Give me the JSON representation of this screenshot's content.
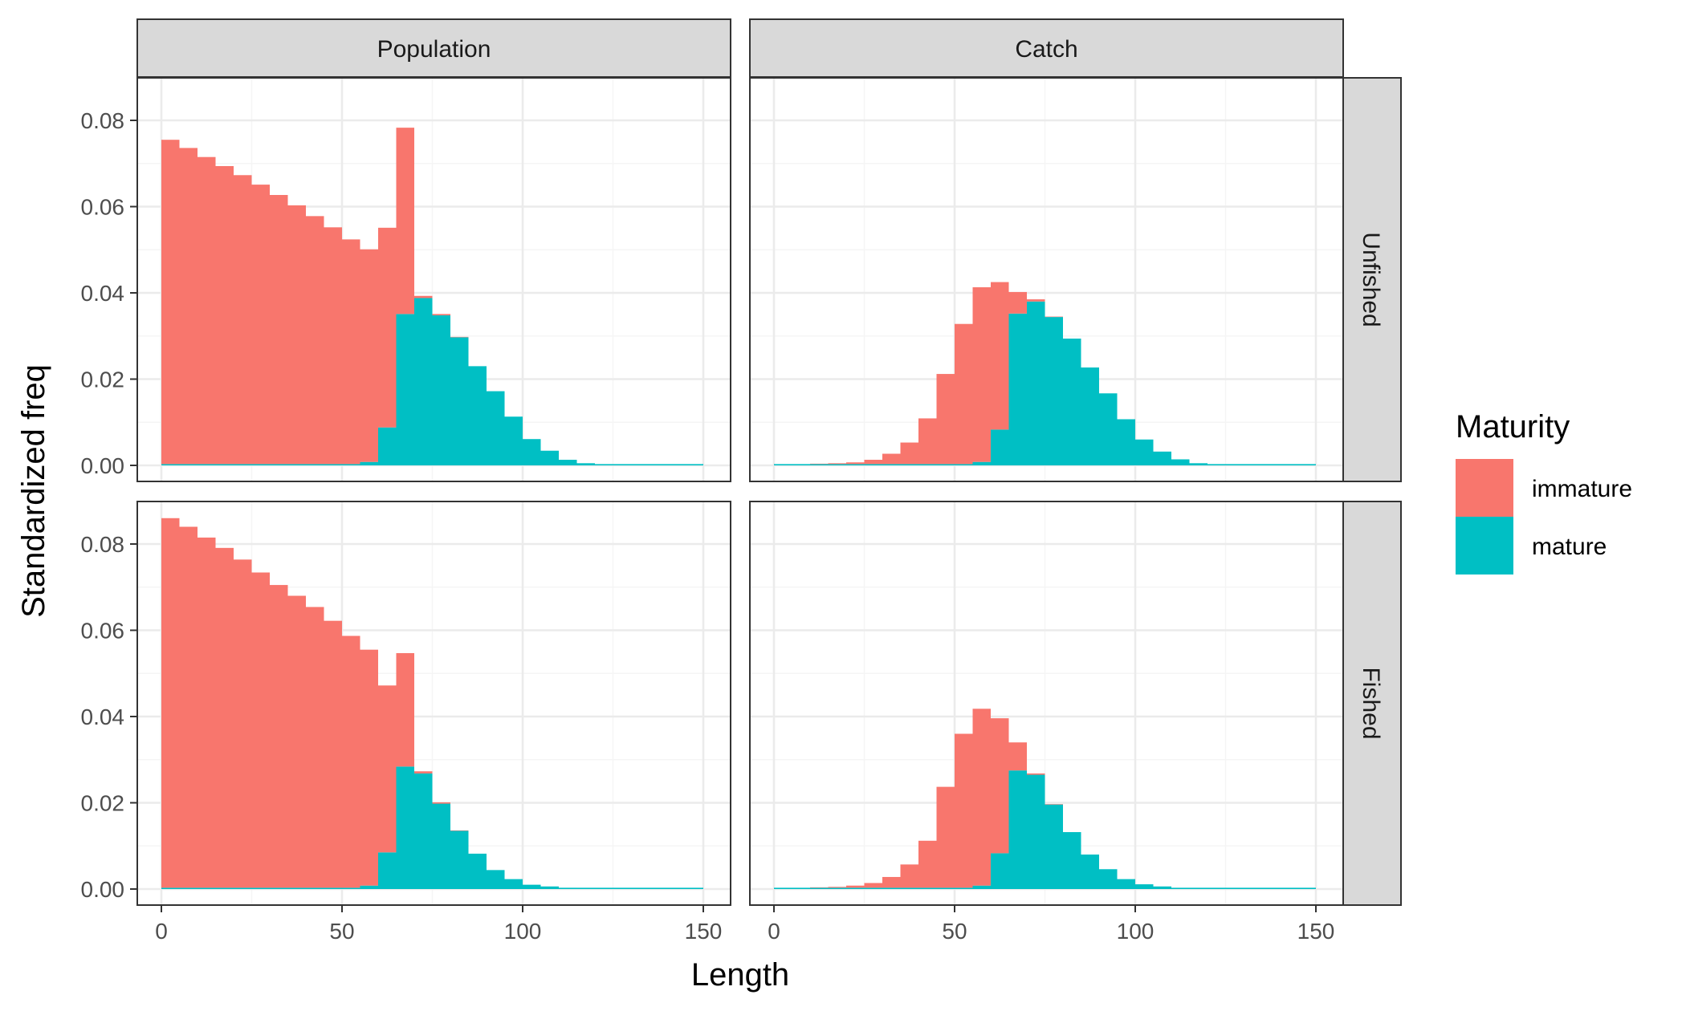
{
  "colors": {
    "immature": "#F8766D",
    "mature": "#00BFC4",
    "strip_fill": "#D9D9D9",
    "panel_border": "#333333",
    "grid_major": "#EBEBEB",
    "grid_minor": "#F5F5F5"
  },
  "chart_data": {
    "type": "bar",
    "stacked": true,
    "bin_width": 5,
    "xlabel": "Length",
    "ylabel": "Standardized freq",
    "xlim": [
      0,
      150
    ],
    "ylim": [
      0,
      0.09
    ],
    "x_ticks": [
      "0",
      "50",
      "100",
      "150"
    ],
    "y_ticks": [
      "0.00",
      "0.02",
      "0.04",
      "0.06",
      "0.08"
    ],
    "grid": true,
    "legend": {
      "title": "Maturity",
      "position": "right",
      "entries": [
        "immature",
        "mature"
      ]
    },
    "facet_columns": [
      "Population",
      "Catch"
    ],
    "facet_rows": [
      "Unfished",
      "Fished"
    ],
    "bin_starts": [
      0,
      5,
      10,
      15,
      20,
      25,
      30,
      35,
      40,
      45,
      50,
      55,
      60,
      65,
      70,
      75,
      80,
      85,
      90,
      95,
      100,
      105,
      110,
      115,
      120,
      125,
      130,
      135,
      140,
      145
    ],
    "panels": [
      {
        "column": "Population",
        "row": "Unfished",
        "series": [
          {
            "name": "immature",
            "values": [
              0.0752,
              0.0733,
              0.0712,
              0.0691,
              0.067,
              0.0648,
              0.0624,
              0.06,
              0.0575,
              0.0549,
              0.0521,
              0.0493,
              0.0463,
              0.0432,
              0.0005,
              0.0003,
              0.0001,
              0,
              0,
              0,
              0,
              0,
              0,
              0,
              0,
              0,
              0,
              0,
              0,
              0
            ]
          },
          {
            "name": "mature",
            "values": [
              0,
              0,
              0,
              0,
              0,
              0,
              0,
              0,
              0,
              0,
              0.0001,
              0.0008,
              0.0088,
              0.0351,
              0.0388,
              0.0348,
              0.0297,
              0.023,
              0.0172,
              0.0113,
              0.0061,
              0.0034,
              0.0013,
              0.0005,
              0.0002,
              0.0001,
              0,
              0,
              0,
              0
            ]
          }
        ]
      },
      {
        "column": "Catch",
        "row": "Unfished",
        "series": [
          {
            "name": "immature",
            "values": [
              0,
              0,
              0.0001,
              0.0002,
              0.0004,
              0.001,
              0.0024,
              0.005,
              0.0106,
              0.0209,
              0.0325,
              0.0405,
              0.0342,
              0.005,
              0.0005,
              0.0001,
              0,
              0,
              0,
              0,
              0,
              0,
              0,
              0,
              0,
              0,
              0,
              0,
              0,
              0
            ]
          },
          {
            "name": "mature",
            "values": [
              0,
              0,
              0,
              0,
              0,
              0,
              0,
              0,
              0,
              0,
              0.0001,
              0.0008,
              0.0083,
              0.0352,
              0.038,
              0.0344,
              0.0294,
              0.0227,
              0.0167,
              0.0107,
              0.006,
              0.0032,
              0.0014,
              0.0005,
              0.0002,
              0.0001,
              0,
              0,
              0,
              0
            ]
          }
        ]
      },
      {
        "column": "Population",
        "row": "Fished",
        "series": [
          {
            "name": "immature",
            "values": [
              0.0857,
              0.0837,
              0.0812,
              0.0788,
              0.0761,
              0.0731,
              0.0702,
              0.0677,
              0.0651,
              0.0619,
              0.0584,
              0.0547,
              0.0387,
              0.0263,
              0.0005,
              0.0003,
              0.0001,
              0,
              0,
              0,
              0,
              0,
              0,
              0,
              0,
              0,
              0,
              0,
              0,
              0
            ]
          },
          {
            "name": "mature",
            "values": [
              0,
              0,
              0,
              0,
              0,
              0,
              0,
              0,
              0,
              0,
              0.0001,
              0.0008,
              0.0085,
              0.0284,
              0.0268,
              0.0198,
              0.0135,
              0.0082,
              0.0044,
              0.0023,
              0.001,
              0.0006,
              0.0003,
              0.0001,
              0,
              0,
              0,
              0,
              0,
              0
            ]
          }
        ]
      },
      {
        "column": "Catch",
        "row": "Fished",
        "series": [
          {
            "name": "immature",
            "values": [
              0,
              0,
              0.0001,
              0.0002,
              0.0005,
              0.0011,
              0.0025,
              0.0054,
              0.0109,
              0.0234,
              0.0357,
              0.041,
              0.0313,
              0.0065,
              0.0003,
              0.0001,
              0,
              0,
              0,
              0,
              0,
              0,
              0,
              0,
              0,
              0,
              0,
              0,
              0,
              0
            ]
          },
          {
            "name": "mature",
            "values": [
              0,
              0,
              0,
              0,
              0,
              0,
              0,
              0,
              0,
              0,
              0.0001,
              0.0008,
              0.0083,
              0.0275,
              0.0265,
              0.0196,
              0.0132,
              0.008,
              0.0046,
              0.0023,
              0.0011,
              0.0006,
              0.0002,
              0.0001,
              0,
              0,
              0,
              0,
              0,
              0
            ]
          }
        ]
      }
    ]
  }
}
